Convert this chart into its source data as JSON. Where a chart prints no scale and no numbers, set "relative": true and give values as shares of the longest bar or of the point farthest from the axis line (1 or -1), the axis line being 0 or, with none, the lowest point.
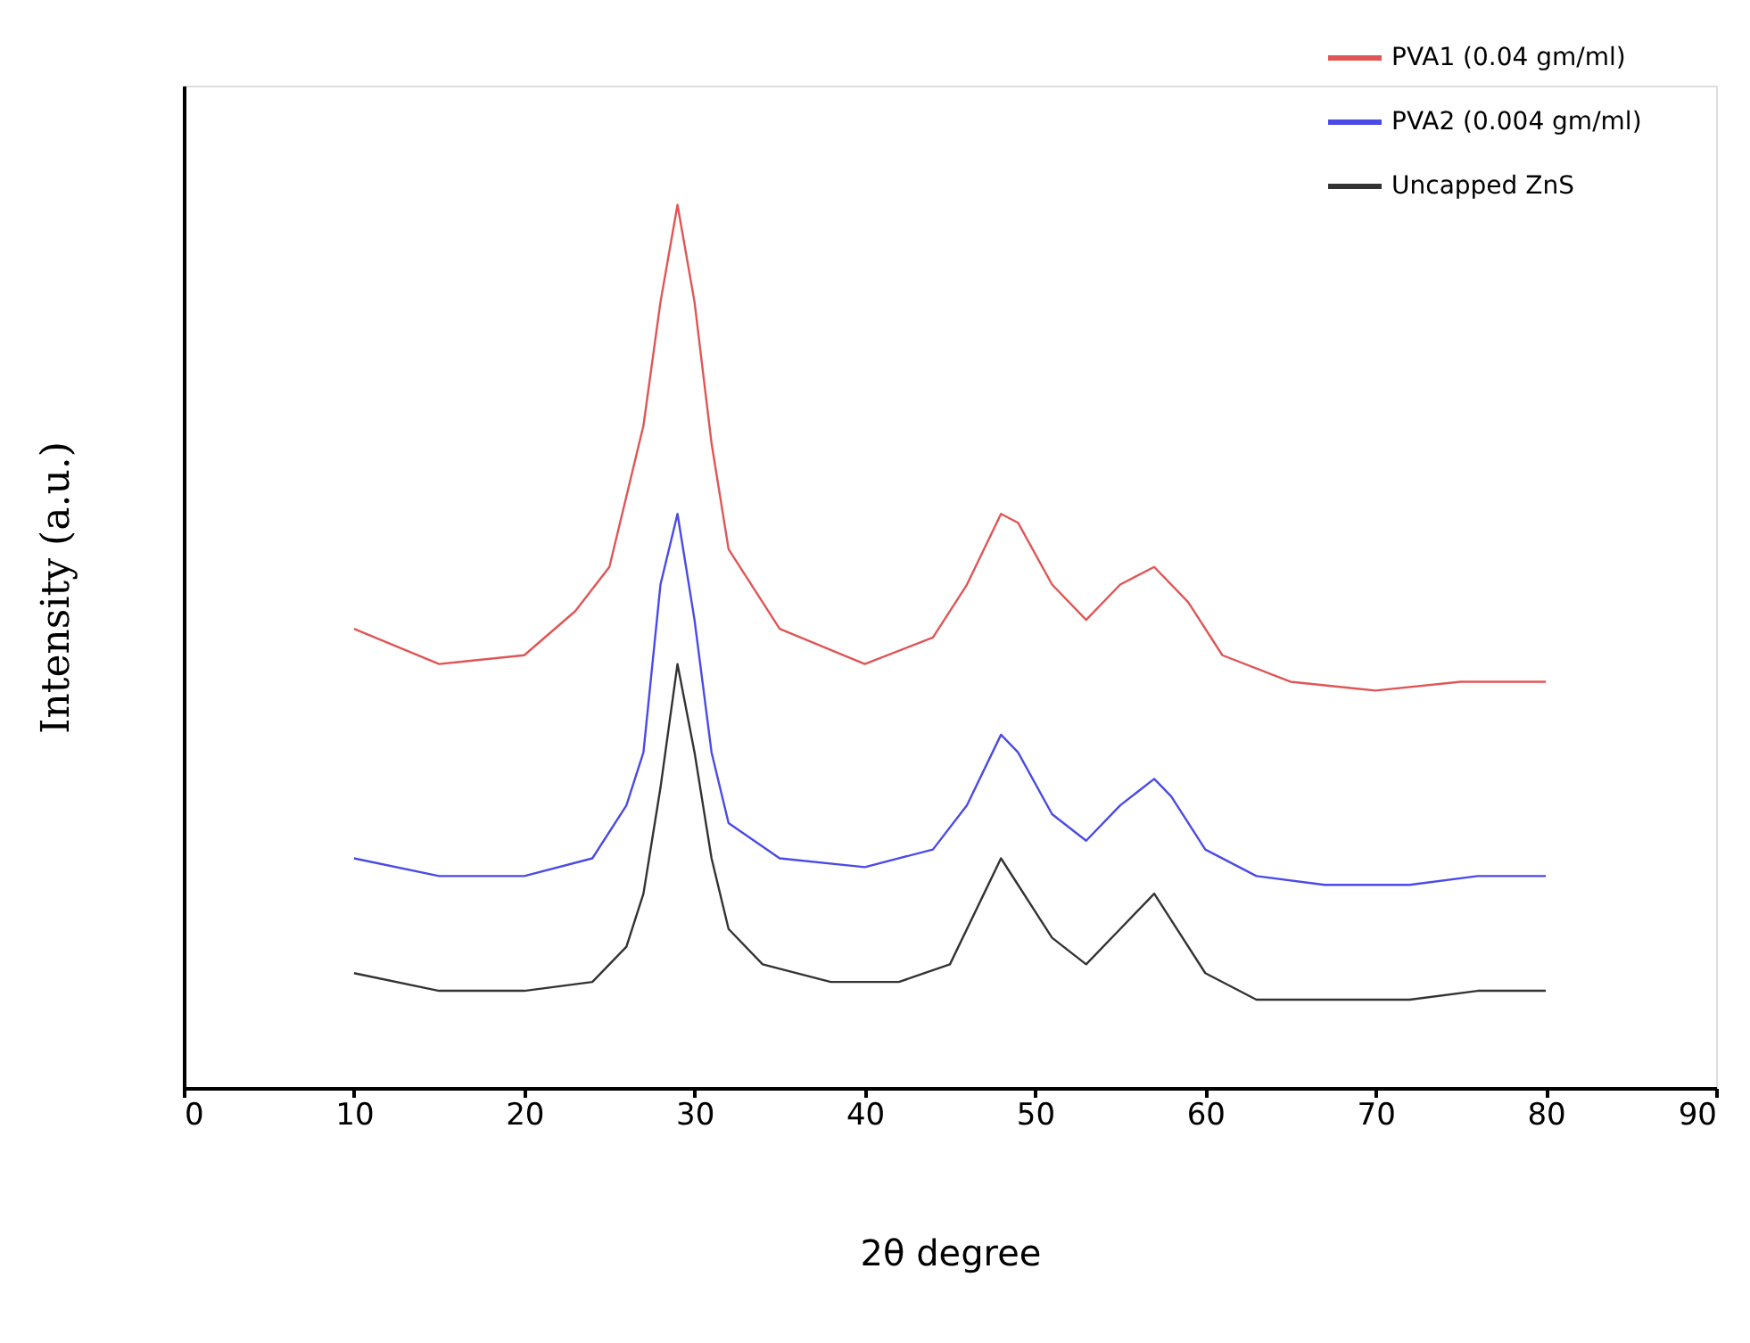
{
  "chart_data": {
    "type": "line",
    "relative": true,
    "xlabel": "2θ degree",
    "ylabel": "Intensity (a.u.)",
    "xlim": [
      0,
      90
    ],
    "xticks": [
      0,
      10,
      20,
      30,
      40,
      50,
      60,
      70,
      80,
      90
    ],
    "grid": false,
    "legend": "top right",
    "marker": "none",
    "line_style": "solid",
    "series": [
      {
        "name": "PVA1 (0.04 gm/ml)",
        "color": "#e05555",
        "x": [
          10,
          15,
          20,
          23,
          25,
          27,
          28,
          29,
          30,
          31,
          32,
          35,
          40,
          44,
          46,
          48,
          49,
          51,
          53,
          55,
          57,
          59,
          61,
          65,
          70,
          75,
          80
        ],
        "values": [
          0.52,
          0.48,
          0.49,
          0.54,
          0.59,
          0.75,
          0.89,
          1.0,
          0.89,
          0.73,
          0.61,
          0.52,
          0.48,
          0.51,
          0.57,
          0.65,
          0.64,
          0.57,
          0.53,
          0.57,
          0.59,
          0.55,
          0.49,
          0.46,
          0.45,
          0.46,
          0.46
        ]
      },
      {
        "name": "PVA2 (0.004 gm/ml)",
        "color": "#4a4ae6",
        "x": [
          10,
          15,
          20,
          24,
          26,
          27,
          28,
          29,
          30,
          31,
          32,
          35,
          40,
          44,
          46,
          48,
          49,
          51,
          53,
          55,
          57,
          58,
          60,
          63,
          67,
          72,
          76,
          80
        ],
        "values": [
          0.26,
          0.24,
          0.24,
          0.26,
          0.32,
          0.38,
          0.57,
          0.65,
          0.53,
          0.38,
          0.3,
          0.26,
          0.25,
          0.27,
          0.32,
          0.4,
          0.38,
          0.31,
          0.28,
          0.32,
          0.35,
          0.33,
          0.27,
          0.24,
          0.23,
          0.23,
          0.24,
          0.24
        ]
      },
      {
        "name": "Uncapped ZnS",
        "color": "#333333",
        "x": [
          10,
          15,
          20,
          24,
          26,
          27,
          28,
          29,
          30,
          31,
          32,
          34,
          38,
          42,
          45,
          47,
          48,
          49,
          51,
          53,
          55,
          57,
          58,
          60,
          63,
          67,
          72,
          76,
          80
        ],
        "values": [
          0.13,
          0.11,
          0.11,
          0.12,
          0.16,
          0.22,
          0.34,
          0.48,
          0.38,
          0.26,
          0.18,
          0.14,
          0.12,
          0.12,
          0.14,
          0.22,
          0.26,
          0.23,
          0.17,
          0.14,
          0.18,
          0.22,
          0.19,
          0.13,
          0.1,
          0.1,
          0.1,
          0.11,
          0.11
        ]
      }
    ]
  }
}
